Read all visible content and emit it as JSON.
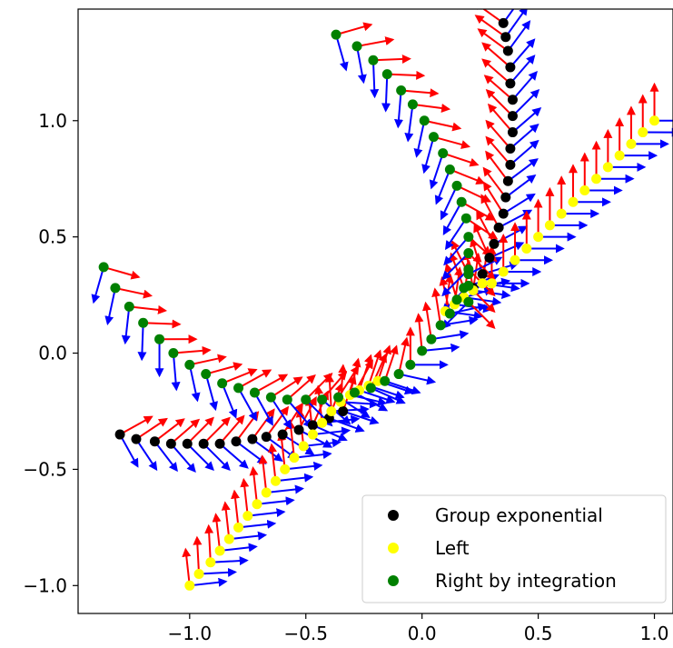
{
  "chart_data": {
    "type": "scatter",
    "title": "",
    "xlabel": "",
    "ylabel": "",
    "xlim": [
      -1.48,
      1.08
    ],
    "ylim": [
      -1.12,
      1.48
    ],
    "x_ticks": [
      -1.0,
      -0.5,
      0.0,
      0.5,
      1.0
    ],
    "y_ticks": [
      -1.0,
      -0.5,
      0.0,
      0.5,
      1.0
    ],
    "x_tick_labels": [
      "−1.0",
      "−0.5",
      "0.0",
      "0.5",
      "1.0"
    ],
    "y_tick_labels": [
      "−1.0",
      "−0.5",
      "0.0",
      "0.5",
      "1.0"
    ],
    "grid": false,
    "legend_position": "lower-right",
    "frame_arrow_colors": {
      "first_axis": "#ff0000",
      "second_axis": "#0000ff"
    },
    "series": [
      {
        "name": "Group exponential",
        "color": "#000000",
        "curves": [
          {
            "x": [
              -1.3,
              -1.23,
              -1.15,
              -1.08,
              -1.01,
              -0.94,
              -0.87,
              -0.8,
              -0.73,
              -0.67,
              -0.6,
              -0.53,
              -0.47,
              -0.4,
              -0.34
            ],
            "y": [
              -0.35,
              -0.37,
              -0.38,
              -0.39,
              -0.39,
              -0.39,
              -0.39,
              -0.38,
              -0.37,
              -0.36,
              -0.35,
              -0.33,
              -0.31,
              -0.28,
              -0.25
            ]
          },
          {
            "x": [
              0.22,
              0.26,
              0.29,
              0.31,
              0.33,
              0.35,
              0.36,
              0.37,
              0.38,
              0.38,
              0.39,
              0.39,
              0.39,
              0.38,
              0.38,
              0.37,
              0.36,
              0.35
            ],
            "y": [
              0.28,
              0.34,
              0.41,
              0.47,
              0.54,
              0.6,
              0.67,
              0.74,
              0.81,
              0.88,
              0.95,
              1.02,
              1.09,
              1.16,
              1.23,
              1.3,
              1.36,
              1.42
            ]
          }
        ]
      },
      {
        "name": "Left",
        "color": "#ffff00",
        "curves": [
          {
            "x": [
              -1.0,
              -0.96,
              -0.91,
              -0.87,
              -0.83,
              -0.79,
              -0.75,
              -0.71,
              -0.67,
              -0.63,
              -0.59,
              -0.55,
              -0.51,
              -0.47,
              -0.43,
              -0.39,
              -0.35,
              -0.31,
              -0.27,
              -0.23,
              -0.19
            ],
            "y": [
              -1.0,
              -0.95,
              -0.9,
              -0.85,
              -0.8,
              -0.75,
              -0.7,
              -0.65,
              -0.6,
              -0.55,
              -0.5,
              -0.45,
              -0.4,
              -0.35,
              -0.3,
              -0.25,
              -0.21,
              -0.18,
              -0.16,
              -0.14,
              -0.12
            ]
          },
          {
            "x": [
              0.3,
              0.35,
              0.4,
              0.45,
              0.5,
              0.55,
              0.6,
              0.65,
              0.7,
              0.75,
              0.8,
              0.85,
              0.9,
              0.95,
              1.0
            ],
            "y": [
              0.3,
              0.35,
              0.4,
              0.45,
              0.5,
              0.55,
              0.6,
              0.65,
              0.7,
              0.75,
              0.8,
              0.85,
              0.9,
              0.95,
              1.0
            ]
          },
          {
            "x": [
              0.1,
              0.14,
              0.18,
              0.22,
              0.26
            ],
            "y": [
              0.18,
              0.21,
              0.24,
              0.27,
              0.3
            ]
          }
        ]
      },
      {
        "name": "Right by integration",
        "color": "#008000",
        "curves": [
          {
            "x": [
              -1.37,
              -1.32,
              -1.26,
              -1.2,
              -1.13,
              -1.07,
              -1.0,
              -0.93,
              -0.86,
              -0.79,
              -0.72,
              -0.65,
              -0.58,
              -0.5,
              -0.43,
              -0.36,
              -0.29,
              -0.22,
              -0.16,
              -0.1,
              -0.05,
              0.0,
              0.04,
              0.08,
              0.12,
              0.15,
              0.18,
              0.2
            ],
            "y": [
              0.37,
              0.28,
              0.2,
              0.13,
              0.06,
              0.0,
              -0.05,
              -0.09,
              -0.13,
              -0.15,
              -0.17,
              -0.19,
              -0.2,
              -0.2,
              -0.2,
              -0.19,
              -0.17,
              -0.15,
              -0.12,
              -0.09,
              -0.05,
              0.01,
              0.06,
              0.12,
              0.17,
              0.23,
              0.28,
              0.34
            ]
          },
          {
            "x": [
              -0.37,
              -0.28,
              -0.21,
              -0.15,
              -0.09,
              -0.04,
              0.01,
              0.05,
              0.09,
              0.12,
              0.15,
              0.17,
              0.19,
              0.2,
              0.2,
              0.2,
              0.2,
              0.2
            ],
            "y": [
              1.37,
              1.32,
              1.26,
              1.2,
              1.13,
              1.07,
              1.0,
              0.93,
              0.86,
              0.79,
              0.72,
              0.65,
              0.58,
              0.5,
              0.43,
              0.36,
              0.29,
              0.22
            ]
          }
        ]
      }
    ]
  }
}
